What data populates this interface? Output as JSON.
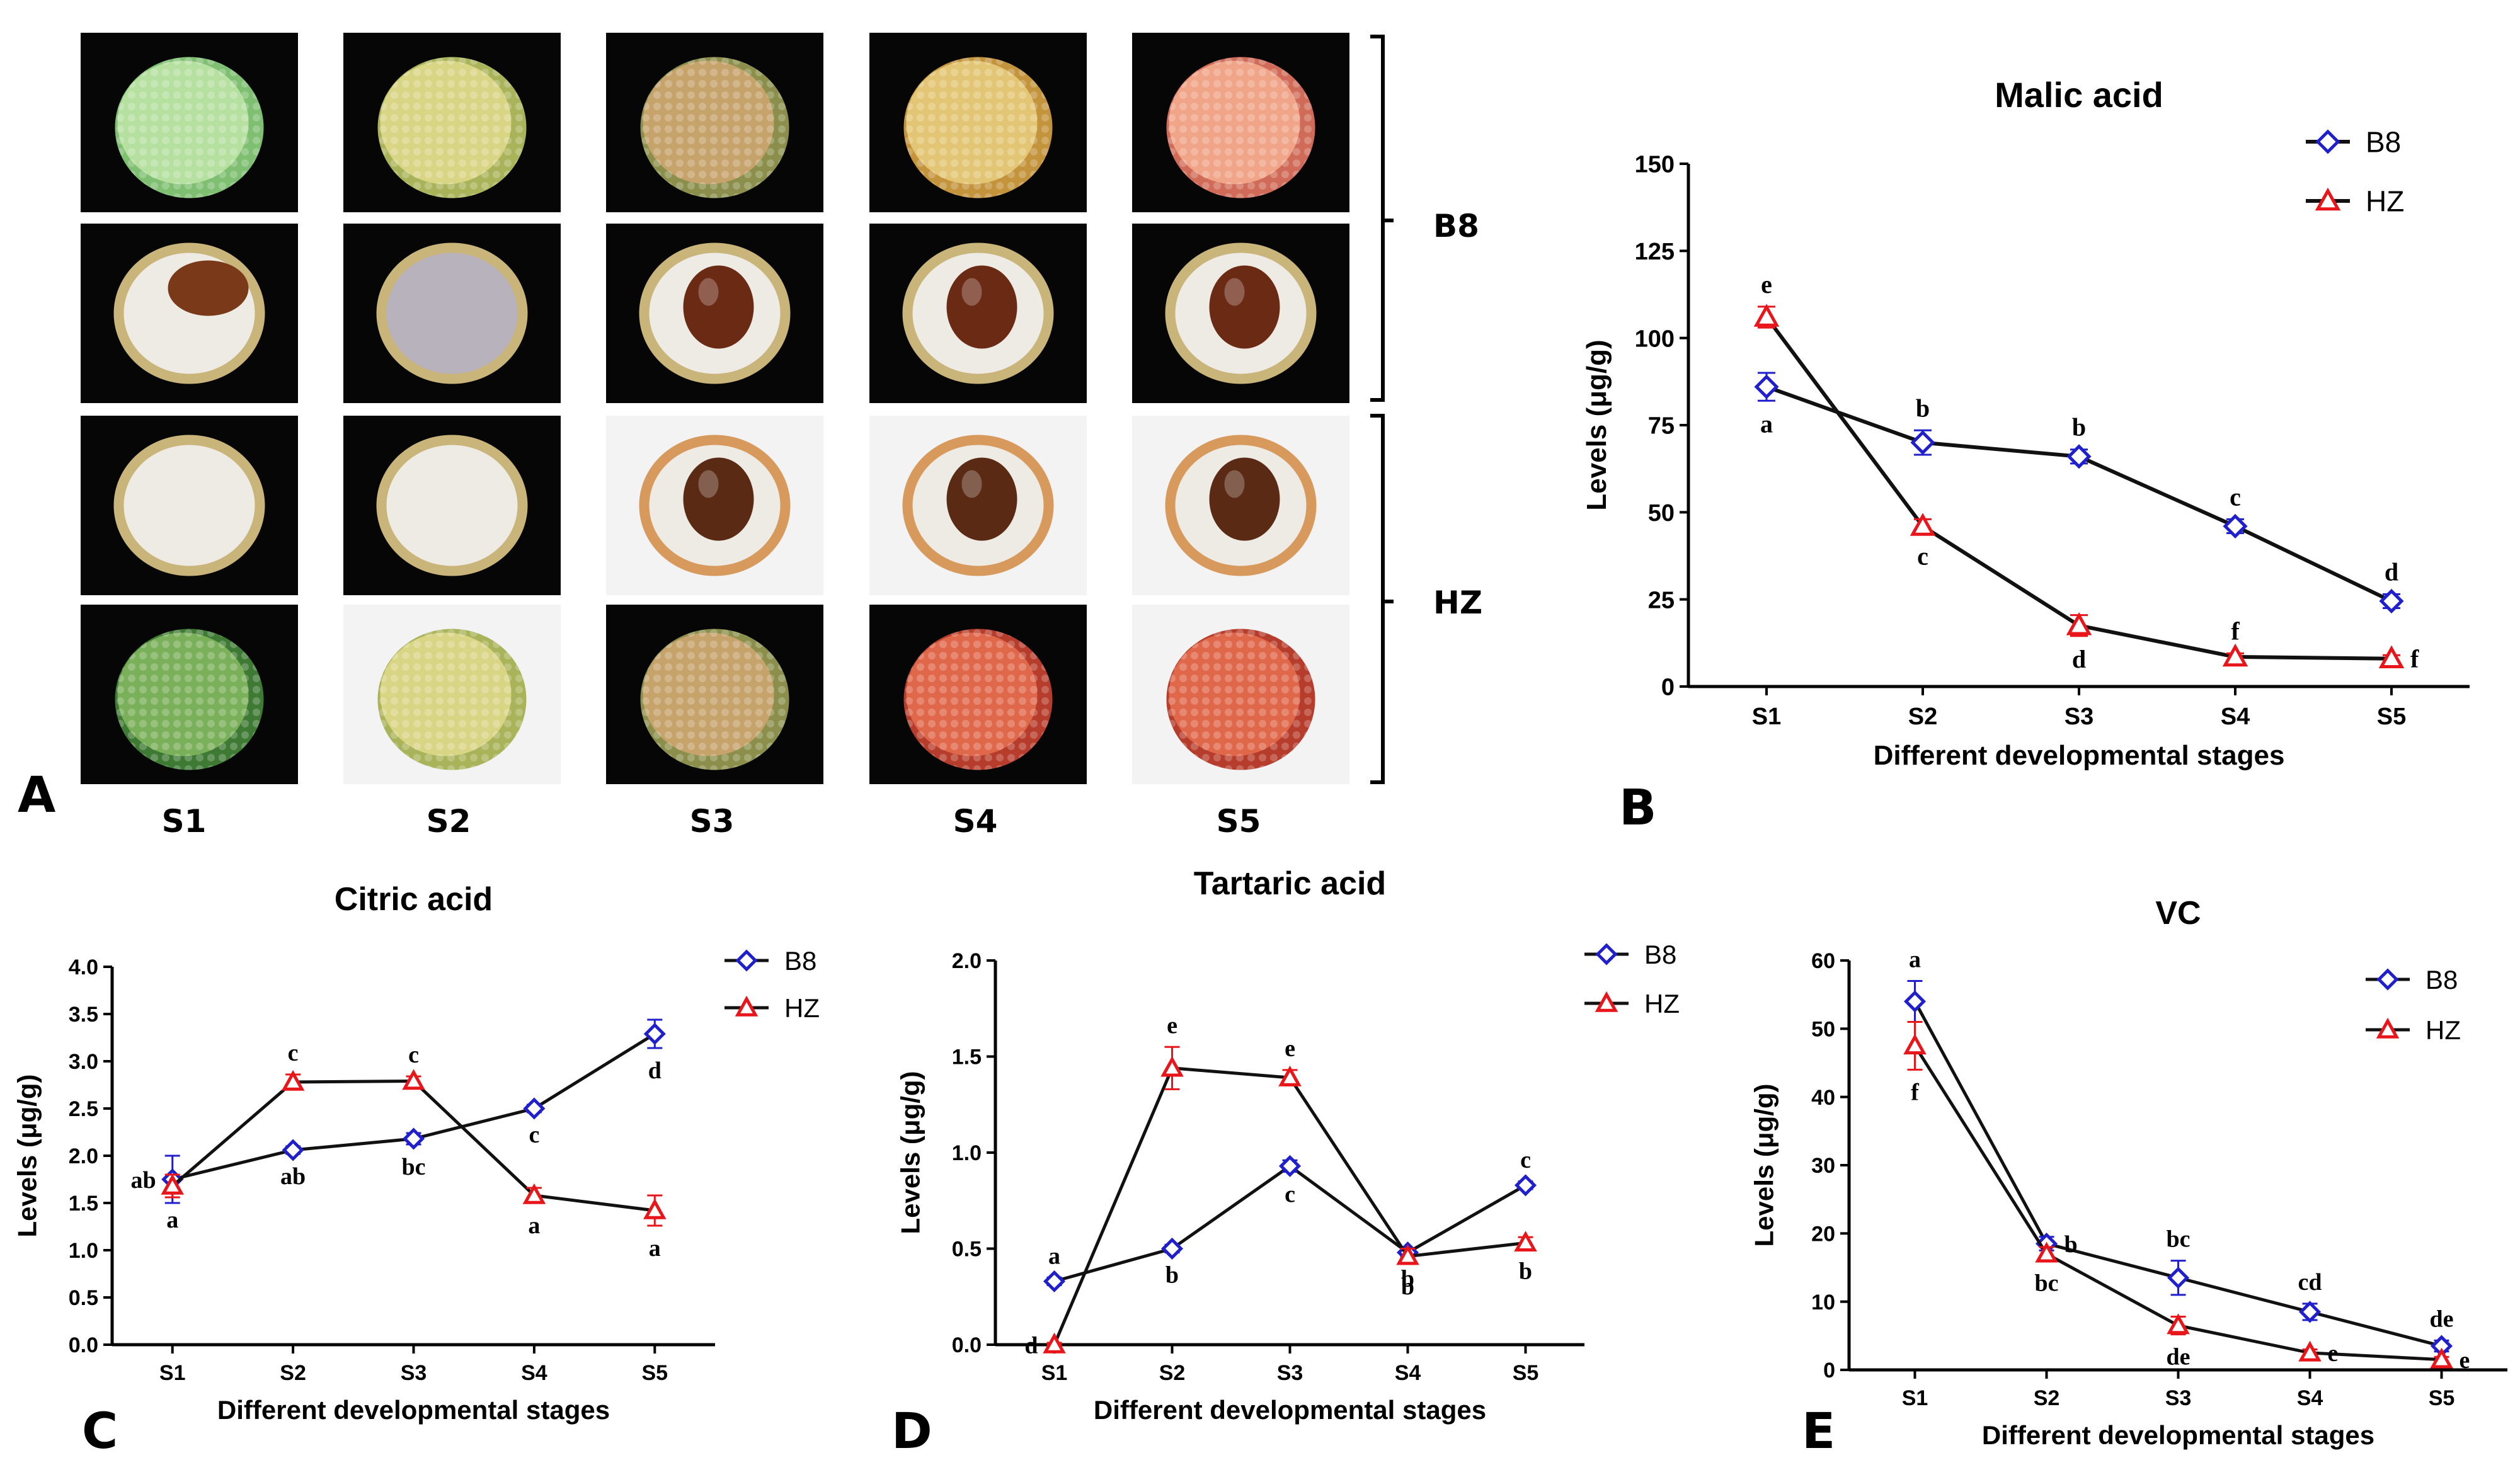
{
  "figure": {
    "panel_letters": [
      "A",
      "B",
      "C",
      "D",
      "E"
    ],
    "stages": [
      "S1",
      "S2",
      "S3",
      "S4",
      "S5"
    ],
    "bracket_labels": {
      "b8": "B8",
      "hz": "HZ"
    },
    "photos": [
      [
        "whole-fruit-green",
        "whole-fruit-yellow-green",
        "whole-fruit-pink-green",
        "whole-fruit-yellow",
        "whole-fruit-pink"
      ],
      [
        "cut-fruit-white-aril",
        "cut-fruit-grey-aril",
        "cut-fruit-brown-seed",
        "cut-fruit-brown-seed",
        "cut-fruit-brown-seed"
      ],
      [
        "cut-fruit-white-aril",
        "cut-fruit-white-aril",
        "cut-fruit-dark-seed",
        "cut-fruit-dark-seed",
        "cut-fruit-dark-seed"
      ],
      [
        "whole-fruit-dark-green",
        "whole-fruit-yellow-green",
        "whole-fruit-pink-green",
        "whole-fruit-red",
        "whole-fruit-red"
      ]
    ]
  },
  "colors": {
    "b8": "#1f1fcc",
    "hz": "#e8161a",
    "line": "#111111"
  },
  "chart_data": [
    {
      "id": "malic",
      "type": "line",
      "title": "Malic acid",
      "xlabel": "Different developmental stages",
      "ylabel": "Levels (μg/g)",
      "categories": [
        "S1",
        "S2",
        "S3",
        "S4",
        "S5"
      ],
      "ylim": [
        0,
        150
      ],
      "yticks": [
        0,
        25,
        50,
        75,
        100,
        125,
        150
      ],
      "ytick_labels": [
        "0",
        "25",
        "50",
        "75",
        "100",
        "125",
        "150"
      ],
      "legend": [
        "B8",
        "HZ"
      ],
      "series": [
        {
          "name": "B8",
          "marker": "diamond",
          "values": [
            86,
            70,
            66,
            46,
            24.5
          ],
          "errors": [
            4,
            3.5,
            2,
            2,
            2
          ],
          "letters": [
            "a",
            "b",
            "b",
            "c",
            "d"
          ],
          "letter_pos": [
            "below",
            "above",
            "above",
            "above",
            "above"
          ]
        },
        {
          "name": "HZ",
          "marker": "triangle",
          "values": [
            106,
            46,
            17.5,
            8.5,
            8
          ],
          "errors": [
            3,
            2,
            3,
            1,
            1
          ],
          "letters": [
            "e",
            "c",
            "d",
            "f",
            "f"
          ],
          "letter_pos": [
            "above",
            "below",
            "below",
            "above",
            "right"
          ]
        }
      ]
    },
    {
      "id": "citric",
      "type": "line",
      "title": "Citric acid",
      "xlabel": "Different developmental stages",
      "ylabel": "Levels (μg/g)",
      "categories": [
        "S1",
        "S2",
        "S3",
        "S4",
        "S5"
      ],
      "ylim": [
        0,
        4
      ],
      "yticks": [
        0,
        0.5,
        1,
        1.5,
        2,
        2.5,
        3,
        3.5,
        4
      ],
      "ytick_labels": [
        "0.0",
        "0.5",
        "1.0",
        "1.5",
        "2.0",
        "2.5",
        "3.0",
        "3.5",
        "4.0"
      ],
      "legend": [
        "B8",
        "HZ"
      ],
      "series": [
        {
          "name": "B8",
          "marker": "diamond",
          "values": [
            1.75,
            2.06,
            2.18,
            2.5,
            3.29
          ],
          "errors": [
            0.25,
            0.04,
            0.06,
            0.04,
            0.15
          ],
          "letters": [
            "ab",
            "ab",
            "bc",
            "c",
            "d"
          ],
          "letter_pos": [
            "left",
            "below",
            "below",
            "below",
            "below"
          ]
        },
        {
          "name": "HZ",
          "marker": "triangle",
          "values": [
            1.68,
            2.78,
            2.79,
            1.58,
            1.42
          ],
          "errors": [
            0.12,
            0.08,
            0.05,
            0.08,
            0.16
          ],
          "letters": [
            "a",
            "c",
            "c",
            "a",
            "a"
          ],
          "letter_pos": [
            "below",
            "above",
            "above",
            "below",
            "below"
          ]
        }
      ]
    },
    {
      "id": "tartaric",
      "type": "line",
      "title": "Tartaric acid",
      "xlabel": "Different developmental stages",
      "ylabel": "Levels (μg/g)",
      "categories": [
        "S1",
        "S2",
        "S3",
        "S4",
        "S5"
      ],
      "ylim": [
        0,
        2
      ],
      "yticks": [
        0,
        0.5,
        1,
        1.5,
        2
      ],
      "ytick_labels": [
        "0.0",
        "0.5",
        "1.0",
        "1.5",
        "2.0"
      ],
      "legend": [
        "B8",
        "HZ"
      ],
      "series": [
        {
          "name": "B8",
          "marker": "diamond",
          "values": [
            0.33,
            0.5,
            0.93,
            0.48,
            0.83
          ],
          "errors": [
            0.02,
            0.02,
            0.03,
            0.02,
            0.02
          ],
          "letters": [
            "a",
            "b",
            "c",
            "b",
            "c"
          ],
          "letter_pos": [
            "above",
            "below",
            "below",
            "below",
            "above"
          ]
        },
        {
          "name": "HZ",
          "marker": "triangle",
          "values": [
            0.0,
            1.44,
            1.39,
            0.46,
            0.53
          ],
          "errors": [
            0.01,
            0.11,
            0.04,
            0.04,
            0.03
          ],
          "letters": [
            "d",
            "e",
            "e",
            "b",
            "b"
          ],
          "letter_pos": [
            "left",
            "above",
            "above",
            "below",
            "below"
          ]
        }
      ]
    },
    {
      "id": "vc",
      "type": "line",
      "title": "VC",
      "xlabel": "Different developmental stages",
      "ylabel": "Levels (μg/g)",
      "categories": [
        "S1",
        "S2",
        "S3",
        "S4",
        "S5"
      ],
      "ylim": [
        0,
        60
      ],
      "yticks": [
        0,
        10,
        20,
        30,
        40,
        50,
        60
      ],
      "ytick_labels": [
        "0",
        "10",
        "20",
        "30",
        "40",
        "50",
        "60"
      ],
      "legend": [
        "B8",
        "HZ"
      ],
      "series": [
        {
          "name": "B8",
          "marker": "diamond",
          "values": [
            54,
            18.5,
            13.5,
            8.5,
            3.5
          ],
          "errors": [
            3,
            1,
            2.5,
            1.2,
            0.8
          ],
          "letters": [
            "a",
            "b",
            "bc",
            "cd",
            "de"
          ],
          "letter_pos": [
            "above",
            "right",
            "above",
            "above",
            "above"
          ]
        },
        {
          "name": "HZ",
          "marker": "triangle",
          "values": [
            47.5,
            17,
            6.5,
            2.5,
            1.5
          ],
          "errors": [
            3.5,
            1,
            1.3,
            0.5,
            0.4
          ],
          "letters": [
            "f",
            "bc",
            "de",
            "e",
            "e"
          ],
          "letter_pos": [
            "below",
            "below",
            "below",
            "right",
            "right"
          ]
        }
      ]
    }
  ]
}
